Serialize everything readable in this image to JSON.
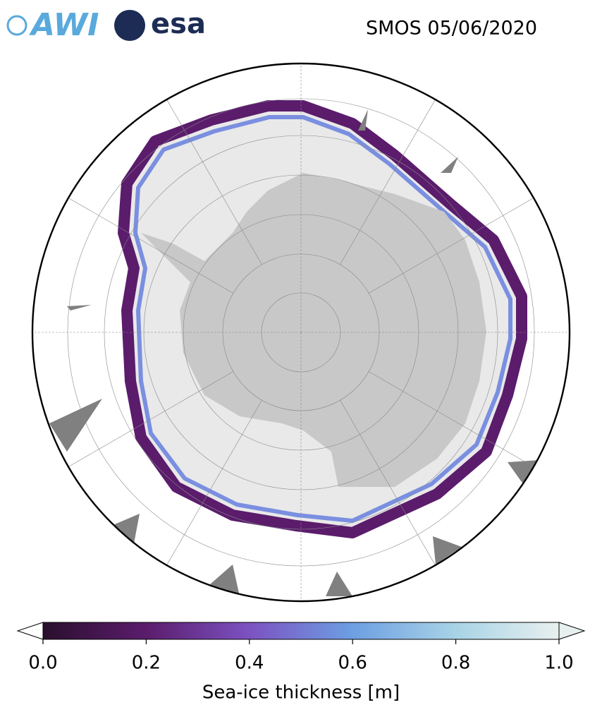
{
  "header": {
    "logos": [
      "AWI",
      "esa"
    ],
    "title": "SMOS 05/06/2020"
  },
  "colorbar": {
    "label": "Sea-ice thickness [m]",
    "lim": [
      0,
      1
    ],
    "ticks": [
      {
        "value": 0,
        "label": "0.0"
      },
      0.2,
      0.4,
      0.6,
      0.8,
      {
        "value": 1,
        "label": "1.0"
      }
    ],
    "colors": [
      "#2a0f2e",
      "#5b1c6c",
      "#7c52c2",
      "#6d9fe2",
      "#a8d3e6",
      "#e8f0ef"
    ]
  }
}
